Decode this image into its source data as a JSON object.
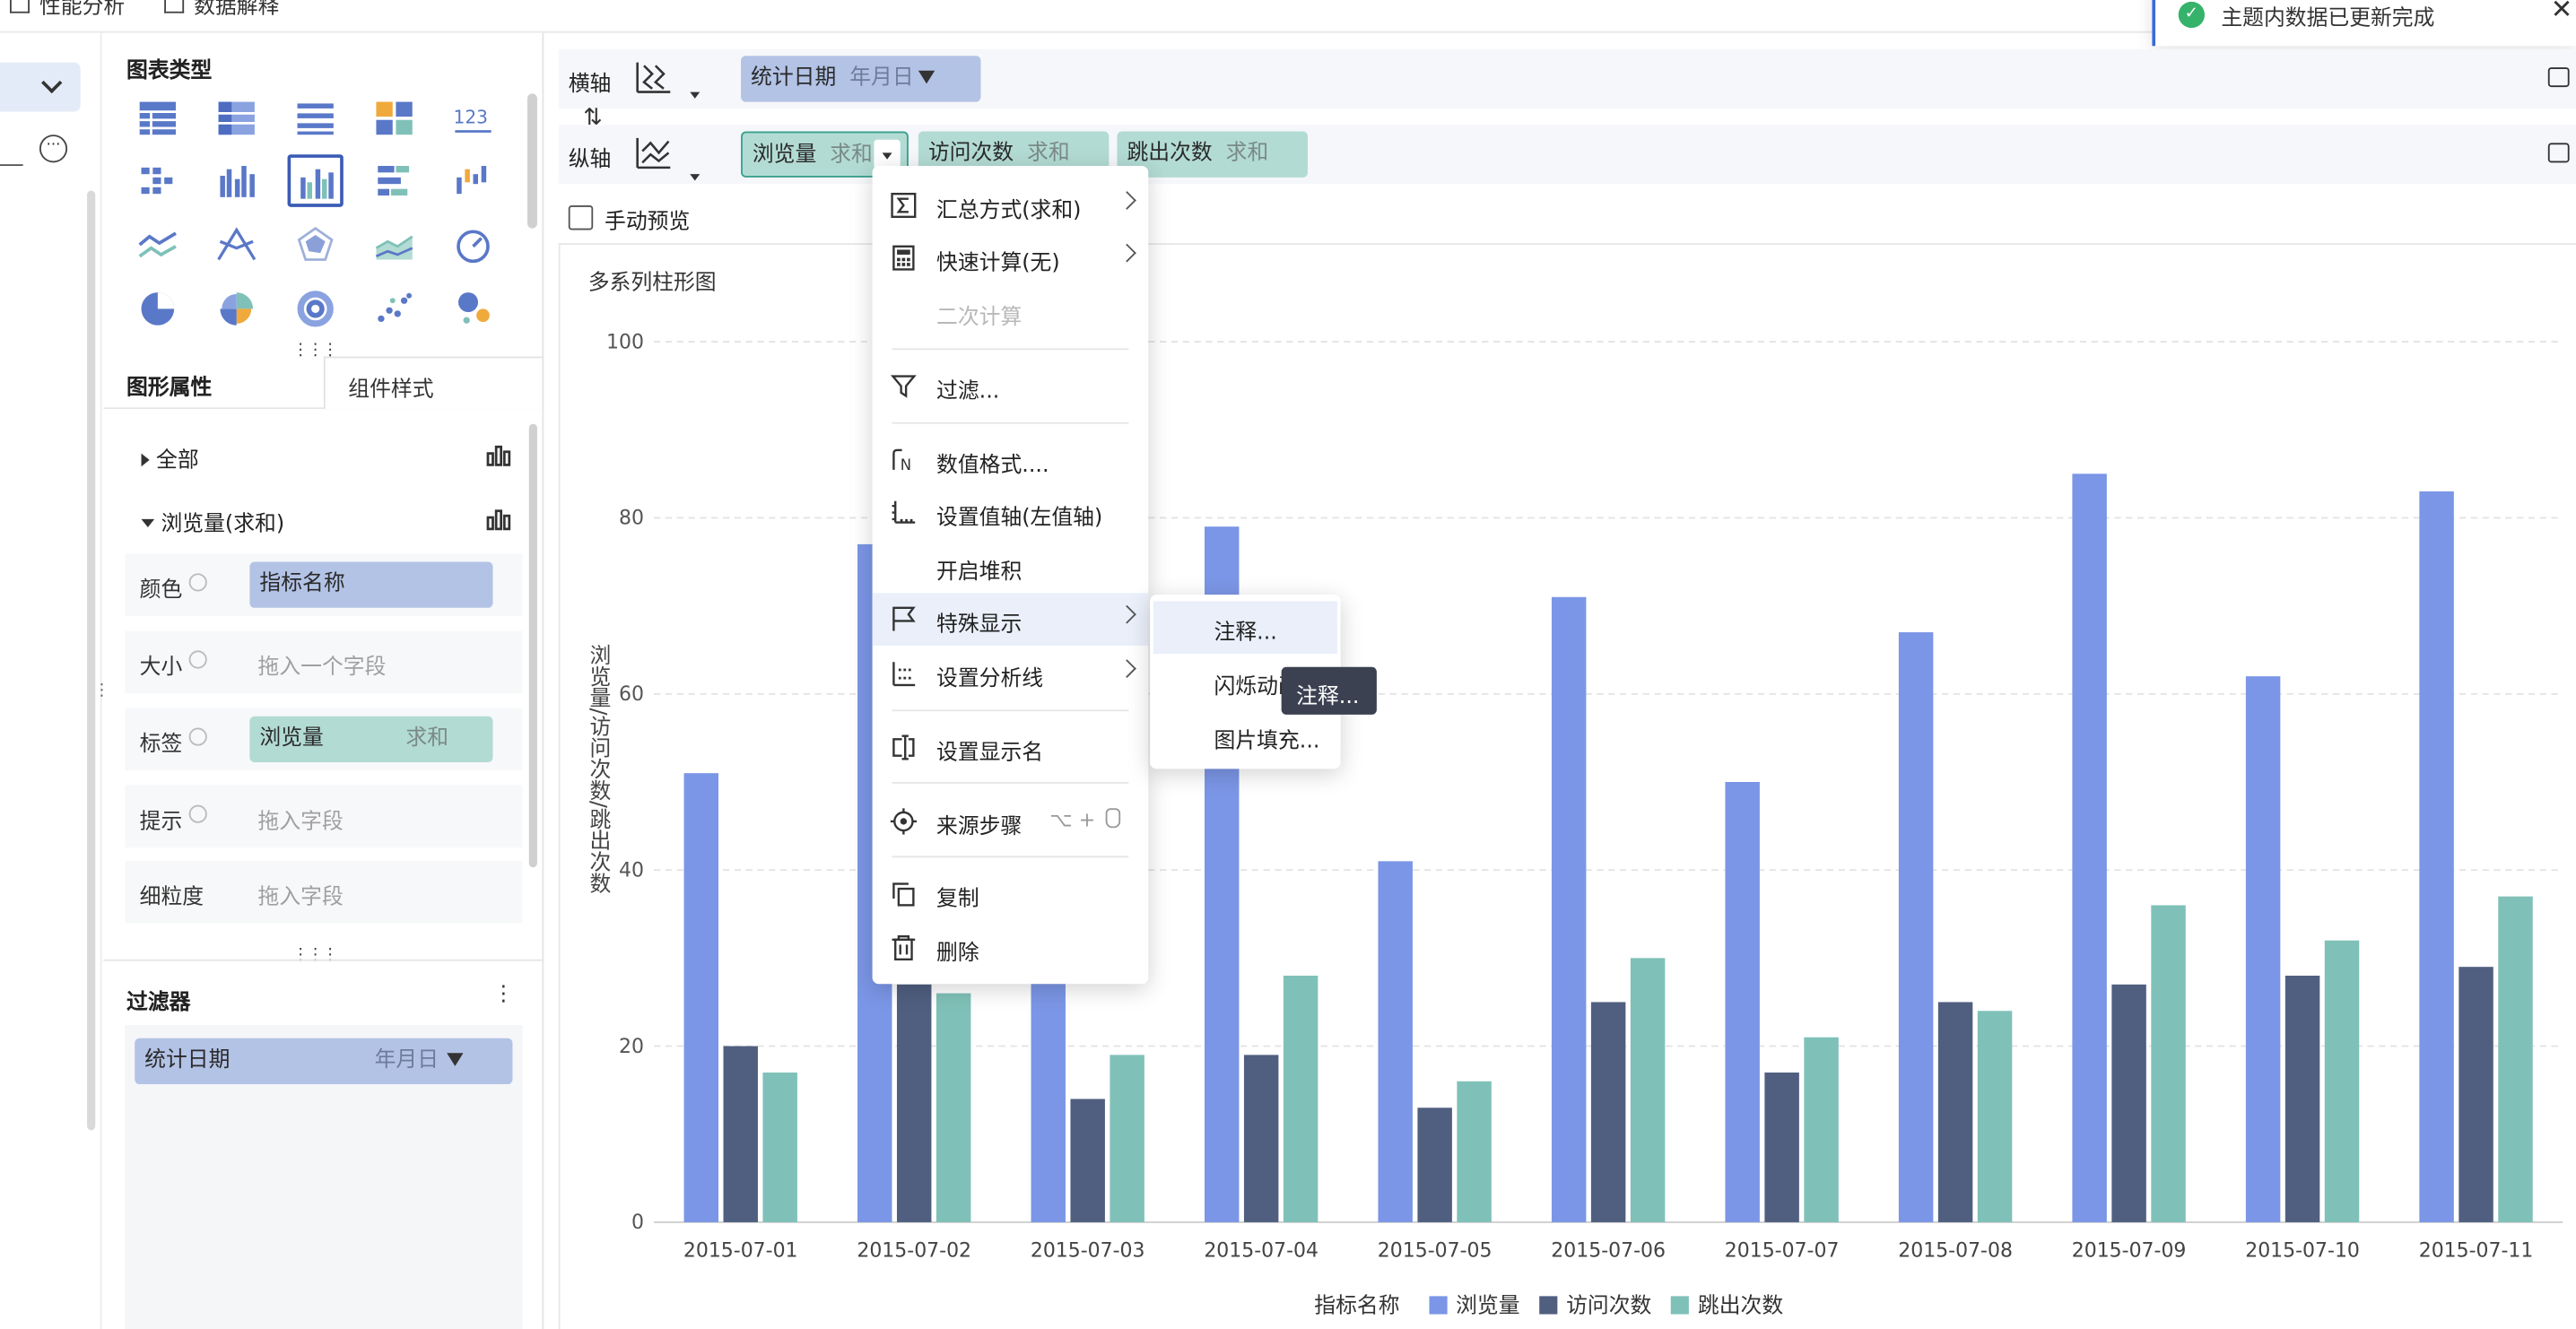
{
  "topbar": {
    "tab1": "性能分析",
    "tab2": "数据解释"
  },
  "toast": {
    "text": "主题内数据已更新完成"
  },
  "chart_types": {
    "title": "图表类型"
  },
  "tabs": {
    "graphic_props": "图形属性",
    "component_style": "组件样式"
  },
  "props": {
    "all_label": "全部",
    "series_label": "浏览量(求和)",
    "rows": {
      "color": {
        "label": "颜色",
        "value": "指标名称"
      },
      "size": {
        "label": "大小",
        "placeholder": "拖入一个字段"
      },
      "tag": {
        "label": "标签",
        "value": "浏览量",
        "agg": "求和"
      },
      "tooltip": {
        "label": "提示",
        "placeholder": "拖入字段"
      },
      "granularity": {
        "label": "细粒度",
        "placeholder": "拖入字段"
      }
    }
  },
  "filter": {
    "title": "过滤器",
    "field": "统计日期",
    "unit": "年月日"
  },
  "xaxis_shelf": {
    "label": "横轴",
    "field": "统计日期",
    "unit": "年月日"
  },
  "yaxis_shelf": {
    "label": "纵轴",
    "fields": [
      {
        "name": "浏览量",
        "agg": "求和"
      },
      {
        "name": "访问次数",
        "agg": "求和"
      },
      {
        "name": "跳出次数",
        "agg": "求和"
      }
    ]
  },
  "manual_preview": {
    "label": "手动预览"
  },
  "context_menu": {
    "items": [
      {
        "label": "汇总方式(求和)",
        "icon": "sigma-icon",
        "submenu": true
      },
      {
        "label": "快速计算(无)",
        "icon": "calculator-icon",
        "submenu": true
      },
      {
        "label": "二次计算",
        "icon": "",
        "disabled": true
      },
      {
        "label": "过滤...",
        "icon": "filter-icon"
      },
      {
        "label": "数值格式....",
        "icon": "number-format-icon"
      },
      {
        "label": "设置值轴(左值轴)",
        "icon": "value-axis-icon"
      },
      {
        "label": "开启堆积",
        "icon": ""
      },
      {
        "label": "特殊显示",
        "icon": "flag-icon",
        "submenu": true,
        "active": true
      },
      {
        "label": "设置分析线",
        "icon": "analysis-line-icon",
        "submenu": true
      },
      {
        "label": "设置显示名",
        "icon": "rename-icon"
      },
      {
        "label": "来源步骤",
        "icon": "target-icon",
        "shortcut": "⌥ +"
      },
      {
        "label": "复制",
        "icon": "copy-icon"
      },
      {
        "label": "删除",
        "icon": "trash-icon"
      }
    ]
  },
  "special_submenu": {
    "items": [
      "注释...",
      "闪烁动画",
      "图片填充..."
    ]
  },
  "tooltip": {
    "text": "注释..."
  },
  "colors": {
    "series1": "#7b96e6",
    "series2": "#505f80",
    "series3": "#7fc1b8",
    "accent": "#3b5bb5",
    "pill_blue": "#b3c3e6",
    "pill_green": "#b2dbd3"
  },
  "chart_data": {
    "type": "bar",
    "title": "多系列柱形图",
    "ylabel": "浏览量/访问次数/跳出次数",
    "ylim": [
      0,
      100
    ],
    "yticks": [
      0,
      20,
      40,
      60,
      80,
      100
    ],
    "categories": [
      "2015-07-01",
      "2015-07-02",
      "2015-07-03",
      "2015-07-04",
      "2015-07-05",
      "2015-07-06",
      "2015-07-07",
      "2015-07-08",
      "2015-07-09",
      "2015-07-10",
      "2015-07-11"
    ],
    "series": [
      {
        "name": "浏览量",
        "color": "#7b96e6",
        "values": [
          51,
          77,
          61,
          79,
          41,
          71,
          50,
          67,
          85,
          62,
          83
        ]
      },
      {
        "name": "访问次数",
        "color": "#505f80",
        "values": [
          20,
          27,
          14,
          19,
          13,
          25,
          17,
          25,
          27,
          28,
          29
        ]
      },
      {
        "name": "跳出次数",
        "color": "#7fc1b8",
        "values": [
          17,
          26,
          19,
          28,
          16,
          30,
          21,
          24,
          36,
          32,
          37
        ]
      }
    ],
    "legend_title": "指标名称",
    "legend_position": "bottom",
    "grid": true
  }
}
